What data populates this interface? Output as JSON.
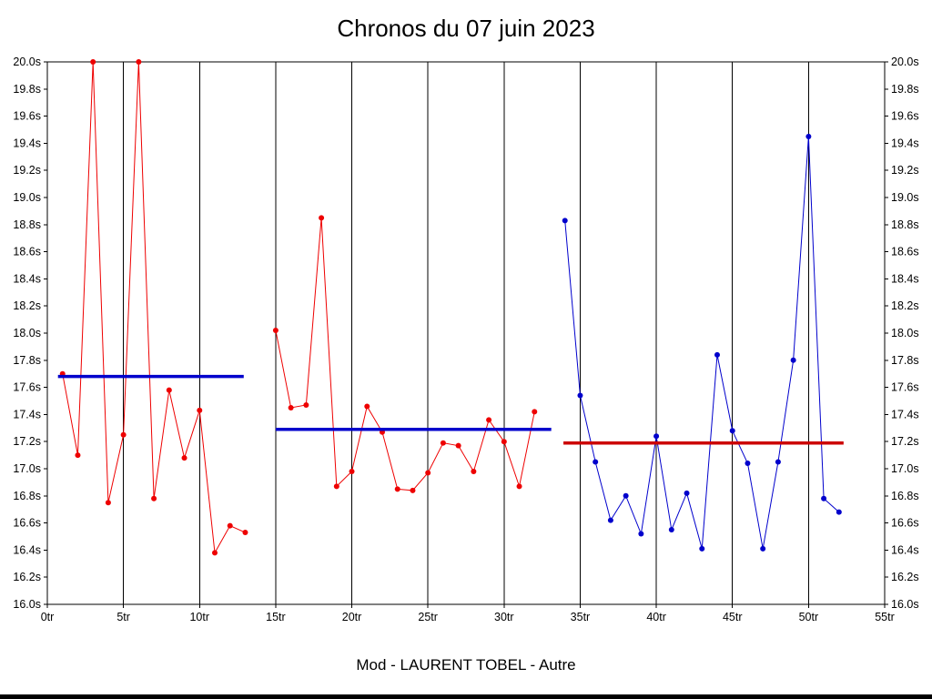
{
  "chart_data": {
    "type": "line",
    "title": "Chronos du 07 juin 2023",
    "caption": "Mod - LAURENT TOBEL - Autre",
    "xlim": [
      0,
      55
    ],
    "ylim": [
      16.0,
      20.0
    ],
    "grid": "vertical-only",
    "legend": "none",
    "x_tick_labels": [
      "0tr",
      "5tr",
      "10tr",
      "15tr",
      "20tr",
      "25tr",
      "30tr",
      "35tr",
      "40tr",
      "45tr",
      "50tr",
      "55tr"
    ],
    "y_tick_labels": [
      "20.0s",
      "19.8s",
      "19.6s",
      "19.4s",
      "19.2s",
      "19.0s",
      "18.8s",
      "18.6s",
      "18.4s",
      "18.2s",
      "18.0s",
      "17.8s",
      "17.6s",
      "17.4s",
      "17.2s",
      "17.0s",
      "16.8s",
      "16.6s",
      "16.4s",
      "16.2s",
      "16.0s"
    ],
    "series": [
      {
        "name": "segment-1",
        "color": "#ee0000",
        "points": [
          [
            1,
            17.7
          ],
          [
            2,
            17.1
          ],
          [
            3,
            20.0
          ],
          [
            4,
            16.75
          ],
          [
            5,
            17.25
          ],
          [
            6,
            20.0
          ],
          [
            7,
            16.78
          ],
          [
            8,
            17.58
          ],
          [
            9,
            17.08
          ],
          [
            10,
            17.43
          ],
          [
            11,
            16.38
          ],
          [
            12,
            16.58
          ],
          [
            13,
            16.53
          ]
        ]
      },
      {
        "name": "segment-2",
        "color": "#ee0000",
        "points": [
          [
            15,
            18.02
          ],
          [
            16,
            17.45
          ],
          [
            17,
            17.47
          ],
          [
            18,
            18.85
          ],
          [
            19,
            16.87
          ],
          [
            20,
            16.98
          ],
          [
            21,
            17.46
          ],
          [
            22,
            17.27
          ],
          [
            23,
            16.85
          ],
          [
            24,
            16.84
          ],
          [
            25,
            16.97
          ],
          [
            26,
            17.19
          ],
          [
            27,
            17.17
          ],
          [
            28,
            16.98
          ],
          [
            29,
            17.36
          ],
          [
            30,
            17.2
          ],
          [
            31,
            16.87
          ],
          [
            32,
            17.42
          ]
        ]
      },
      {
        "name": "segment-3",
        "color": "#0000cc",
        "points": [
          [
            34,
            18.83
          ],
          [
            35,
            17.54
          ],
          [
            36,
            17.05
          ],
          [
            37,
            16.62
          ],
          [
            38,
            16.8
          ],
          [
            39,
            16.52
          ],
          [
            40,
            17.24
          ],
          [
            41,
            16.55
          ],
          [
            42,
            16.82
          ],
          [
            43,
            16.41
          ],
          [
            44,
            17.84
          ],
          [
            45,
            17.28
          ],
          [
            46,
            17.04
          ],
          [
            47,
            16.41
          ],
          [
            48,
            17.05
          ],
          [
            49,
            17.8
          ],
          [
            50,
            19.45
          ],
          [
            51,
            16.78
          ],
          [
            52,
            16.68
          ]
        ]
      }
    ],
    "mean_lines": [
      {
        "name": "mean-segment-1",
        "y": 17.68,
        "x1": 0.7,
        "x2": 12.9,
        "color": "#0000cc"
      },
      {
        "name": "mean-segment-2",
        "y": 17.29,
        "x1": 15.0,
        "x2": 33.1,
        "color": "#0000cc"
      },
      {
        "name": "mean-segment-3",
        "y": 17.19,
        "x1": 33.9,
        "x2": 52.3,
        "color": "#cc0000"
      }
    ],
    "colors": {
      "axis": "#000000",
      "background": "#ffffff"
    }
  }
}
